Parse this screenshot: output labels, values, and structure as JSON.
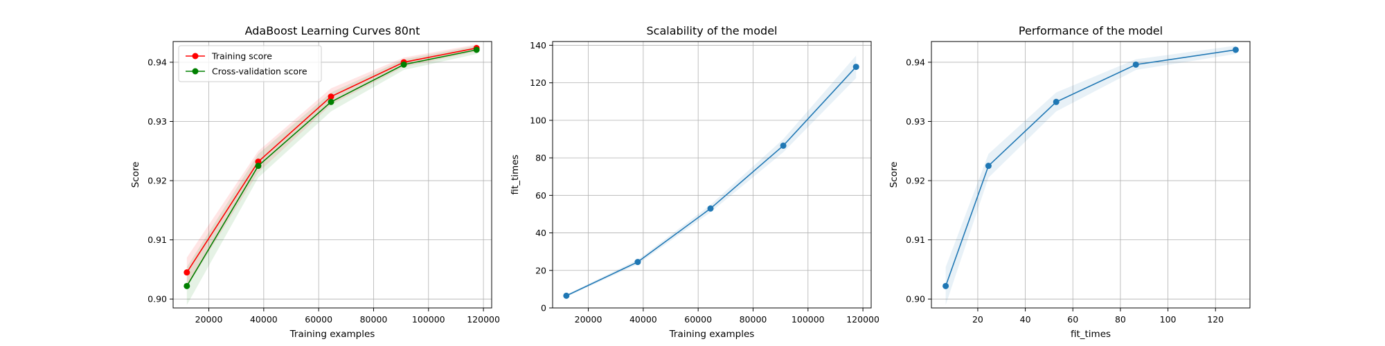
{
  "chart_data": [
    {
      "type": "line",
      "title": "AdaBoost Learning Curves 80nt",
      "xlabel": "Training examples",
      "ylabel": "Score",
      "xlim": [
        7000,
        123000
      ],
      "ylim": [
        0.8985,
        0.9435
      ],
      "xticks": [
        20000,
        40000,
        60000,
        80000,
        100000,
        120000
      ],
      "yticks": [
        0.9,
        0.91,
        0.92,
        0.93,
        0.94
      ],
      "xtick_labels": [
        "20000",
        "40000",
        "60000",
        "80000",
        "100000",
        "120000"
      ],
      "ytick_labels": [
        "0.90",
        "0.91",
        "0.92",
        "0.93",
        "0.94"
      ],
      "grid": true,
      "legend": "top-left",
      "x": [
        12000,
        38000,
        64500,
        91000,
        117500
      ],
      "series": [
        {
          "name": "Training score",
          "color": "#ff0000",
          "values": [
            0.9045,
            0.9232,
            0.9342,
            0.94,
            0.9424
          ],
          "band": [
            0.0025,
            0.0018,
            0.0014,
            0.0008,
            0.0006
          ]
        },
        {
          "name": "Cross-validation score",
          "color": "#008000",
          "values": [
            0.9022,
            0.9225,
            0.9333,
            0.9396,
            0.9421
          ],
          "band": [
            0.0032,
            0.002,
            0.0016,
            0.0009,
            0.0007
          ]
        }
      ]
    },
    {
      "type": "line",
      "title": "Scalability of the model",
      "xlabel": "Training examples",
      "ylabel": "fit_times",
      "xlim": [
        7000,
        123000
      ],
      "ylim": [
        0,
        142
      ],
      "xticks": [
        20000,
        40000,
        60000,
        80000,
        100000,
        120000
      ],
      "yticks": [
        0,
        20,
        40,
        60,
        80,
        100,
        120,
        140
      ],
      "xtick_labels": [
        "20000",
        "40000",
        "60000",
        "80000",
        "100000",
        "120000"
      ],
      "ytick_labels": [
        "0",
        "20",
        "40",
        "60",
        "80",
        "100",
        "120",
        "140"
      ],
      "grid": true,
      "x": [
        12000,
        38000,
        64500,
        91000,
        117500
      ],
      "series": [
        {
          "name": "",
          "color": "#1f77b4",
          "values": [
            6.5,
            24.5,
            53,
            86.5,
            128.5
          ],
          "band": [
            0.6,
            1.2,
            2.0,
            3.5,
            6.0
          ]
        }
      ]
    },
    {
      "type": "line",
      "title": "Performance of the model",
      "xlabel": "fit_times",
      "ylabel": "Score",
      "xlim": [
        0.5,
        134.5
      ],
      "ylim": [
        0.8985,
        0.9435
      ],
      "xticks": [
        20,
        40,
        60,
        80,
        100,
        120
      ],
      "yticks": [
        0.9,
        0.91,
        0.92,
        0.93,
        0.94
      ],
      "xtick_labels": [
        "20",
        "40",
        "60",
        "80",
        "100",
        "120"
      ],
      "ytick_labels": [
        "0.90",
        "0.91",
        "0.92",
        "0.93",
        "0.94"
      ],
      "grid": true,
      "x": [
        6.5,
        24.5,
        53,
        86.5,
        128.5
      ],
      "series": [
        {
          "name": "",
          "color": "#1f77b4",
          "values": [
            0.9022,
            0.9225,
            0.9333,
            0.9396,
            0.9421
          ],
          "band": [
            0.0032,
            0.002,
            0.0016,
            0.0009,
            0.0007
          ]
        }
      ]
    }
  ]
}
